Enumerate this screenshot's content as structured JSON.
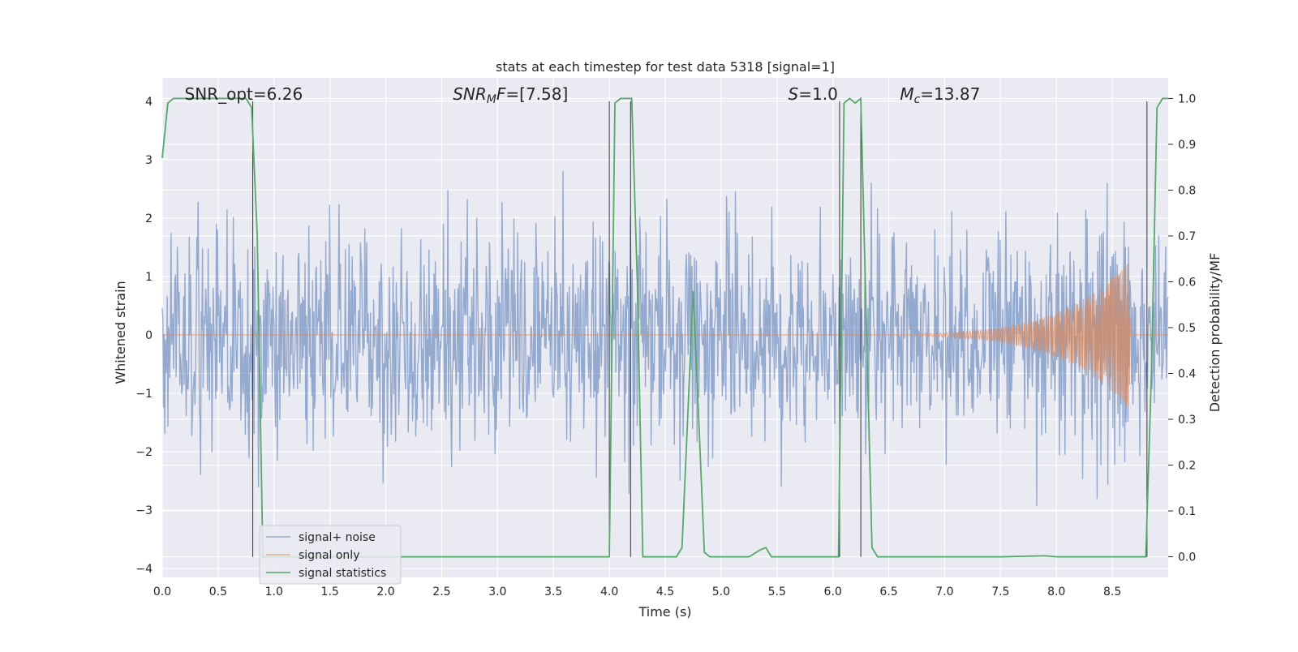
{
  "chart_data": {
    "type": "line",
    "title": "stats at each timestep for test data 5318 [signal=1]",
    "xlabel": "Time (s)",
    "ylabel_left": "Whitened strain",
    "ylabel_right": "Detection probability/MF",
    "xlim": [
      0.0,
      9.0
    ],
    "ylim_left": [
      -4.15,
      4.4
    ],
    "ylim_right": [
      -0.045,
      1.045
    ],
    "xticks": [
      "0.0",
      "0.5",
      "1.0",
      "1.5",
      "2.0",
      "2.5",
      "3.0",
      "3.5",
      "4.0",
      "4.5",
      "5.0",
      "5.5",
      "6.0",
      "6.5",
      "7.0",
      "7.5",
      "8.0",
      "8.5"
    ],
    "xtick_values": [
      0,
      0.5,
      1,
      1.5,
      2,
      2.5,
      3,
      3.5,
      4,
      4.5,
      5,
      5.5,
      6,
      6.5,
      7,
      7.5,
      8,
      8.5
    ],
    "yticks_left": [
      "4",
      "3",
      "2",
      "1",
      "0",
      "−1",
      "−2",
      "−3",
      "−4"
    ],
    "ytick_values_left": [
      4,
      3,
      2,
      1,
      0,
      -1,
      -2,
      -3,
      -4
    ],
    "yticks_right": [
      "1.0",
      "0.9",
      "0.8",
      "0.7",
      "0.6",
      "0.5",
      "0.4",
      "0.3",
      "0.2",
      "0.1",
      "0.0"
    ],
    "ytick_values_right": [
      1.0,
      0.9,
      0.8,
      0.7,
      0.6,
      0.5,
      0.4,
      0.3,
      0.2,
      0.1,
      0.0
    ],
    "grid": true,
    "legend_position": "lower-left",
    "annotations": [
      {
        "text": "SNR_opt=6.26",
        "x": 0.2
      },
      {
        "text": "SNR_MF=[7.58]",
        "x": 2.6
      },
      {
        "text": "S=1.0",
        "x": 5.6
      },
      {
        "text": "M_c=13.87",
        "x": 6.6
      }
    ],
    "vertical_markers": [
      0.81,
      4.0,
      4.19,
      6.06,
      6.25,
      8.81
    ],
    "series": [
      {
        "name": "signal+ noise",
        "axis": "left",
        "color": "#4c72b0",
        "description_stats": {
          "noise_std": 0.85,
          "min": -3.8,
          "max": 4.0,
          "chirp_start": 5.0,
          "chirp_peak_time": 8.65,
          "chirp_peak_amp": 1.25
        }
      },
      {
        "name": "signal only",
        "axis": "left",
        "color": "#dd8452",
        "chirp": {
          "start": 5.0,
          "end": 8.67,
          "peak_time": 8.65,
          "peak_amp": 1.25,
          "min_amp": -0.95
        }
      },
      {
        "name": "signal statistics",
        "axis": "right",
        "color": "#55a868",
        "x": [
          0.0,
          0.05,
          0.1,
          0.15,
          0.2,
          0.3,
          0.4,
          0.5,
          0.6,
          0.7,
          0.75,
          0.8,
          0.85,
          0.9,
          1.0,
          1.5,
          2.0,
          2.5,
          3.0,
          3.5,
          3.95,
          4.0,
          4.05,
          4.1,
          4.15,
          4.2,
          4.25,
          4.3,
          4.35,
          4.4,
          4.5,
          4.6,
          4.65,
          4.7,
          4.75,
          4.8,
          4.85,
          4.9,
          5.0,
          5.2,
          5.25,
          5.35,
          5.4,
          5.45,
          5.5,
          5.8,
          6.0,
          6.05,
          6.1,
          6.15,
          6.2,
          6.25,
          6.3,
          6.35,
          6.4,
          6.5,
          7.0,
          7.5,
          7.9,
          8.0,
          8.5,
          8.8,
          8.85,
          8.9,
          8.95,
          9.0
        ],
        "values": [
          0.87,
          0.99,
          1.0,
          1.0,
          1.0,
          1.0,
          1.0,
          1.0,
          1.0,
          1.0,
          1.0,
          0.98,
          0.7,
          0.0,
          0.0,
          0.0,
          0.0,
          0.0,
          0.0,
          0.0,
          0.0,
          0.0,
          0.99,
          1.0,
          1.0,
          1.0,
          0.6,
          0.0,
          0.0,
          0.0,
          0.0,
          0.0,
          0.02,
          0.3,
          0.58,
          0.3,
          0.01,
          0.0,
          0.0,
          0.0,
          0.0,
          0.015,
          0.02,
          0.0,
          0.0,
          0.0,
          0.0,
          0.0,
          0.99,
          1.0,
          0.99,
          1.0,
          0.5,
          0.02,
          0.0,
          0.0,
          0.0,
          0.0,
          0.002,
          0.0,
          0.0,
          0.0,
          0.4,
          0.98,
          1.0,
          1.0
        ]
      }
    ]
  }
}
